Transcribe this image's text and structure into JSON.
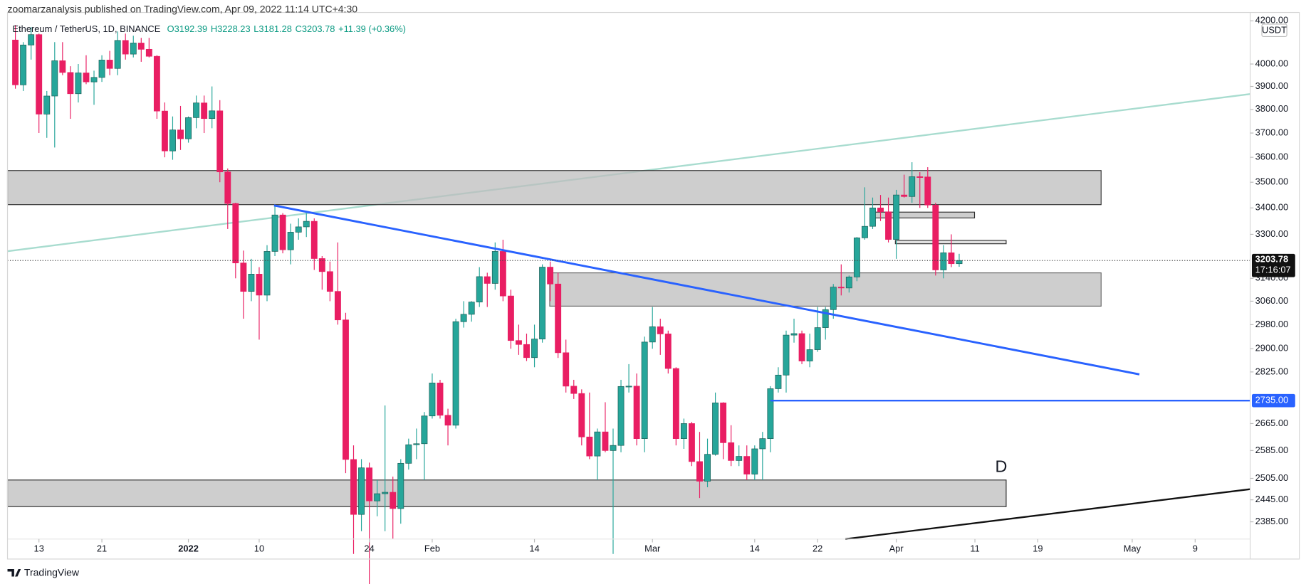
{
  "header": "zoomarzanalysis published on TradingView.com, Apr 09, 2022 11:14 UTC+4:30",
  "legend": {
    "symbol": "Ethereum / TetherUS, 1D, BINANCE",
    "open": "O3192.39",
    "high": "H3228.23",
    "low": "L3181.28",
    "close": "C3203.78",
    "change": "+11.39 (+0.36%)"
  },
  "footer": "TradingView",
  "chart_data": {
    "type": "candlestick",
    "currency": "USDT",
    "log": true,
    "grid": false,
    "up_color": "#26a69a",
    "down_color": "#e91e63",
    "xlim": [
      "2021-12-09",
      "2022-05-16"
    ],
    "xticks": [
      {
        "value": "2021-12-13",
        "label": "13"
      },
      {
        "value": "2021-12-21",
        "label": "21"
      },
      {
        "value": "2022-01-01",
        "label": "2022"
      },
      {
        "value": "2022-01-10",
        "label": "10"
      },
      {
        "value": "2022-01-24",
        "label": "24"
      },
      {
        "value": "2022-02-01",
        "label": "Feb"
      },
      {
        "value": "2022-02-14",
        "label": "14"
      },
      {
        "value": "2022-03-01",
        "label": "Mar"
      },
      {
        "value": "2022-03-14",
        "label": "14"
      },
      {
        "value": "2022-03-22",
        "label": "22"
      },
      {
        "value": "2022-04-01",
        "label": "Apr"
      },
      {
        "value": "2022-04-11",
        "label": "11"
      },
      {
        "value": "2022-04-19",
        "label": "19"
      },
      {
        "value": "2022-05-01",
        "label": "May"
      },
      {
        "value": "2022-05-09",
        "label": "9"
      }
    ],
    "ylim": [
      2339,
      4212
    ],
    "yticks": [
      {
        "value": 4200,
        "label": "4200.00"
      },
      {
        "value": 4000,
        "label": "4000.00"
      },
      {
        "value": 3900,
        "label": "3900.00"
      },
      {
        "value": 3800,
        "label": "3800.00"
      },
      {
        "value": 3700,
        "label": "3700.00"
      },
      {
        "value": 3600,
        "label": "3600.00"
      },
      {
        "value": 3500,
        "label": "3500.00"
      },
      {
        "value": 3400,
        "label": "3400.00"
      },
      {
        "value": 3300,
        "label": "3300.00"
      },
      {
        "value": 3140,
        "label": "3140.00"
      },
      {
        "value": 3060,
        "label": "3060.00"
      },
      {
        "value": 2980,
        "label": "2980.00"
      },
      {
        "value": 2900,
        "label": "2900.00"
      },
      {
        "value": 2825,
        "label": "2825.00"
      },
      {
        "value": 2665,
        "label": "2665.00"
      },
      {
        "value": 2585,
        "label": "2585.00"
      },
      {
        "value": 2505,
        "label": "2505.00"
      },
      {
        "value": 2445,
        "label": "2445.00"
      },
      {
        "value": 2385,
        "label": "2385.00"
      }
    ],
    "price_line": {
      "value": 2735,
      "label": "2735.00",
      "start": "2022-03-16",
      "color": "#2962ff"
    },
    "last_price": {
      "value": 3203.78,
      "label": "3203.78",
      "countdown": "17:16:07"
    },
    "annotation": "D",
    "x": [
      "2021-12-10",
      "2021-12-11",
      "2021-12-12",
      "2021-12-13",
      "2021-12-14",
      "2021-12-15",
      "2021-12-16",
      "2021-12-17",
      "2021-12-18",
      "2021-12-19",
      "2021-12-20",
      "2021-12-21",
      "2021-12-22",
      "2021-12-23",
      "2021-12-24",
      "2021-12-25",
      "2021-12-26",
      "2021-12-27",
      "2021-12-28",
      "2021-12-29",
      "2021-12-30",
      "2021-12-31",
      "2022-01-01",
      "2022-01-02",
      "2022-01-03",
      "2022-01-04",
      "2022-01-05",
      "2022-01-06",
      "2022-01-07",
      "2022-01-08",
      "2022-01-09",
      "2022-01-10",
      "2022-01-11",
      "2022-01-12",
      "2022-01-13",
      "2022-01-14",
      "2022-01-15",
      "2022-01-16",
      "2022-01-17",
      "2022-01-18",
      "2022-01-19",
      "2022-01-20",
      "2022-01-21",
      "2022-01-22",
      "2022-01-23",
      "2022-01-24",
      "2022-01-25",
      "2022-01-26",
      "2022-01-27",
      "2022-01-28",
      "2022-01-29",
      "2022-01-30",
      "2022-01-31",
      "2022-02-01",
      "2022-02-02",
      "2022-02-03",
      "2022-02-04",
      "2022-02-05",
      "2022-02-06",
      "2022-02-07",
      "2022-02-08",
      "2022-02-09",
      "2022-02-10",
      "2022-02-11",
      "2022-02-12",
      "2022-02-13",
      "2022-02-14",
      "2022-02-15",
      "2022-02-16",
      "2022-02-17",
      "2022-02-18",
      "2022-02-19",
      "2022-02-20",
      "2022-02-21",
      "2022-02-22",
      "2022-02-23",
      "2022-02-24",
      "2022-02-25",
      "2022-02-26",
      "2022-02-27",
      "2022-02-28",
      "2022-03-01",
      "2022-03-02",
      "2022-03-03",
      "2022-03-04",
      "2022-03-05",
      "2022-03-06",
      "2022-03-07",
      "2022-03-08",
      "2022-03-09",
      "2022-03-10",
      "2022-03-11",
      "2022-03-12",
      "2022-03-13",
      "2022-03-14",
      "2022-03-15",
      "2022-03-16",
      "2022-03-17",
      "2022-03-18",
      "2022-03-19",
      "2022-03-20",
      "2022-03-21",
      "2022-03-22",
      "2022-03-23",
      "2022-03-24",
      "2022-03-25",
      "2022-03-26",
      "2022-03-27",
      "2022-03-28",
      "2022-03-29",
      "2022-03-30",
      "2022-03-31",
      "2022-04-01",
      "2022-04-02",
      "2022-04-03",
      "2022-04-04",
      "2022-04-05",
      "2022-04-06",
      "2022-04-07",
      "2022-04-08",
      "2022-04-09"
    ],
    "open": [
      4110,
      3907,
      4087,
      4135,
      3780,
      3858,
      4015,
      3962,
      3868,
      3960,
      3920,
      3940,
      4018,
      3980,
      4108,
      4045,
      4096,
      4067,
      4035,
      3793,
      3626,
      3713,
      3676,
      3765,
      3828,
      3761,
      3794,
      3541,
      3417,
      3195,
      3094,
      3155,
      3081,
      3237,
      3373,
      3243,
      3308,
      3328,
      3349,
      3211,
      3164,
      3094,
      2996,
      2559,
      2405,
      2535,
      2442,
      2462,
      2466,
      2421,
      2548,
      2602,
      2605,
      2688,
      2790,
      2690,
      2660,
      2990,
      3015,
      3057,
      3146,
      3122,
      3237,
      3078,
      2927,
      2914,
      2871,
      2932,
      3180,
      3120,
      2887,
      2780,
      2757,
      2625,
      2569,
      2640,
      2585,
      2600,
      2779,
      2780,
      2620,
      2922,
      2973,
      2949,
      2836,
      2620,
      2665,
      2553,
      2497,
      2574,
      2728,
      2608,
      2556,
      2568,
      2517,
      2590,
      2620,
      2772,
      2815,
      2945,
      2950,
      2860,
      2897,
      2970,
      3031,
      3109,
      3106,
      3145,
      3287,
      3330,
      3400,
      3385,
      3281,
      3450,
      3444,
      3522,
      3521,
      3411,
      3170,
      3232,
      3192.39
    ],
    "high": [
      4180,
      4100,
      4170,
      4140,
      3880,
      4100,
      4100,
      3990,
      4000,
      4040,
      3970,
      4040,
      4060,
      4150,
      4140,
      4130,
      4120,
      4120,
      4040,
      3830,
      3770,
      3815,
      3770,
      3860,
      3860,
      3900,
      3840,
      3555,
      3420,
      3240,
      3210,
      3180,
      3260,
      3410,
      3380,
      3340,
      3360,
      3380,
      3360,
      3220,
      3200,
      3270,
      3020,
      2600,
      2560,
      2550,
      2500,
      2720,
      2510,
      2560,
      2620,
      2650,
      2700,
      2820,
      2800,
      2710,
      3000,
      3060,
      3060,
      3180,
      3160,
      3270,
      3280,
      3100,
      2980,
      2950,
      2980,
      3190,
      3200,
      3160,
      2930,
      2800,
      2770,
      2760,
      2650,
      2730,
      2650,
      2800,
      2850,
      2820,
      2940,
      3040,
      3000,
      2960,
      2840,
      2680,
      2670,
      2640,
      2620,
      2760,
      2730,
      2660,
      2600,
      2600,
      2600,
      2640,
      2780,
      2840,
      2960,
      3000,
      2960,
      2950,
      3040,
      3040,
      3120,
      3190,
      3150,
      3290,
      3480,
      3440,
      3450,
      3440,
      3470,
      3530,
      3580,
      3540,
      3560,
      3420,
      3260,
      3300,
      3228.23
    ],
    "low": [
      3890,
      3880,
      4020,
      3700,
      3680,
      3640,
      3950,
      3760,
      3830,
      3910,
      3820,
      3920,
      3950,
      3950,
      4020,
      4030,
      4010,
      4030,
      3760,
      3600,
      3590,
      3630,
      3660,
      3720,
      3700,
      3720,
      3500,
      3320,
      3140,
      3000,
      3060,
      2930,
      3060,
      3220,
      3230,
      3190,
      3280,
      3290,
      3170,
      3100,
      3060,
      2980,
      2520,
      2300,
      2360,
      2160,
      2400,
      2360,
      2340,
      2380,
      2530,
      2560,
      2500,
      2680,
      2680,
      2600,
      2650,
      2970,
      2990,
      3040,
      3040,
      3100,
      3060,
      2900,
      2880,
      2860,
      2840,
      2920,
      3060,
      2870,
      2760,
      2740,
      2600,
      2560,
      2500,
      2580,
      2300,
      2580,
      2760,
      2600,
      2580,
      2900,
      2880,
      2820,
      2600,
      2590,
      2540,
      2450,
      2480,
      2570,
      2560,
      2540,
      2540,
      2500,
      2500,
      2500,
      2580,
      2760,
      2760,
      2920,
      2850,
      2840,
      2890,
      2930,
      3000,
      3080,
      3090,
      3130,
      3280,
      3320,
      3350,
      3270,
      3210,
      3440,
      3420,
      3400,
      3400,
      3150,
      3140,
      3180,
      3181.28
    ],
    "close": [
      3907,
      4087,
      4135,
      3780,
      3858,
      4015,
      3962,
      3868,
      3960,
      3920,
      3940,
      4018,
      3980,
      4108,
      4045,
      4096,
      4067,
      4035,
      3793,
      3626,
      3713,
      3676,
      3765,
      3828,
      3761,
      3794,
      3541,
      3417,
      3195,
      3094,
      3155,
      3081,
      3237,
      3373,
      3243,
      3308,
      3328,
      3349,
      3211,
      3164,
      3094,
      2996,
      2559,
      2405,
      2535,
      2442,
      2462,
      2466,
      2421,
      2548,
      2602,
      2605,
      2688,
      2790,
      2690,
      2660,
      2990,
      3015,
      3057,
      3146,
      3122,
      3237,
      3078,
      2927,
      2914,
      2871,
      2932,
      3180,
      3120,
      2887,
      2780,
      2757,
      2625,
      2569,
      2640,
      2585,
      2600,
      2779,
      2780,
      2620,
      2922,
      2973,
      2949,
      2836,
      2620,
      2665,
      2553,
      2497,
      2574,
      2728,
      2608,
      2556,
      2568,
      2517,
      2590,
      2620,
      2772,
      2815,
      2945,
      2950,
      2860,
      2897,
      2970,
      3031,
      3109,
      3106,
      3145,
      3287,
      3330,
      3400,
      3385,
      3281,
      3450,
      3444,
      3522,
      3521,
      3411,
      3170,
      3232,
      3192.39,
      3203.78
    ]
  }
}
